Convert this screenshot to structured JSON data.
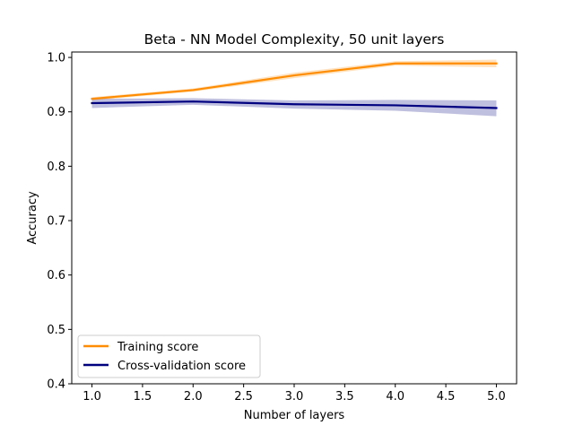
{
  "chart_data": {
    "type": "line",
    "title": "Beta - NN Model Complexity, 50 unit layers",
    "xlabel": "Number of layers",
    "ylabel": "Accuracy",
    "xlim": [
      0.8,
      5.2
    ],
    "ylim": [
      0.4,
      1.01
    ],
    "x": [
      1.0,
      2.0,
      3.0,
      4.0,
      5.0
    ],
    "xticks": [
      1.0,
      1.5,
      2.0,
      2.5,
      3.0,
      3.5,
      4.0,
      4.5,
      5.0
    ],
    "xtick_labels": [
      "1.0",
      "1.5",
      "2.0",
      "2.5",
      "3.0",
      "3.5",
      "4.0",
      "4.5",
      "5.0"
    ],
    "yticks": [
      0.4,
      0.5,
      0.6,
      0.7,
      0.8,
      0.9,
      1.0
    ],
    "ytick_labels": [
      "0.4",
      "0.5",
      "0.6",
      "0.7",
      "0.8",
      "0.9",
      "1.0"
    ],
    "grid": false,
    "legend_position": "lower-left",
    "series": [
      {
        "name": "Training score",
        "color": "#ff8c00",
        "values": [
          0.924,
          0.94,
          0.967,
          0.989,
          0.989
        ],
        "band_low": [
          0.921,
          0.937,
          0.962,
          0.985,
          0.982
        ],
        "band_high": [
          0.927,
          0.943,
          0.972,
          0.993,
          0.996
        ]
      },
      {
        "name": "Cross-validation score",
        "color": "#000080",
        "values": [
          0.916,
          0.919,
          0.914,
          0.912,
          0.907
        ],
        "band_low": [
          0.907,
          0.913,
          0.906,
          0.902,
          0.892
        ],
        "band_high": [
          0.924,
          0.925,
          0.921,
          0.922,
          0.921
        ]
      }
    ]
  }
}
